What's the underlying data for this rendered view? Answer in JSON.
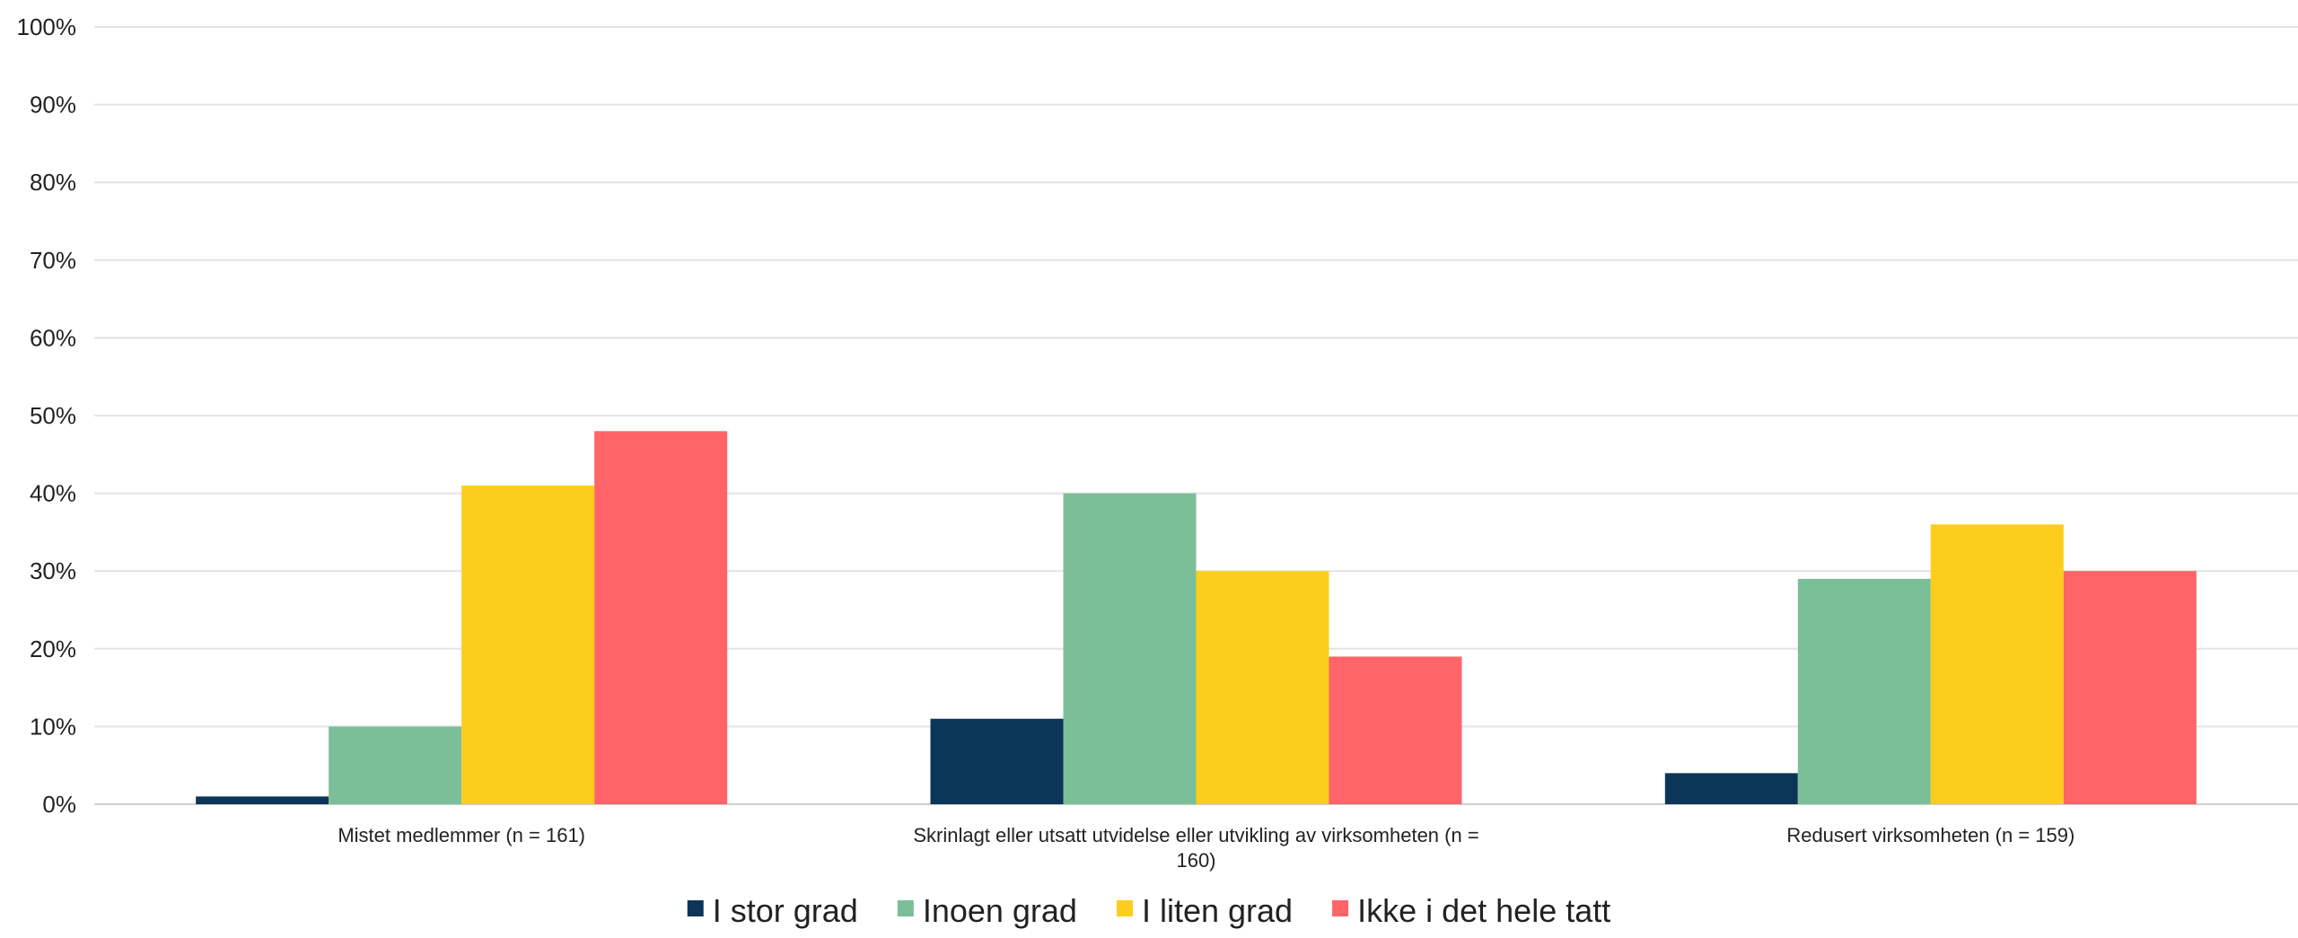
{
  "chart_data": {
    "type": "bar",
    "categories": [
      [
        "Mistet medlemmer (n = 161)"
      ],
      [
        "Skrinlagt eller utsatt utvidelse eller utvikling av virksomheten (n =",
        "160)"
      ],
      [
        "Redusert virksomheten (n = 159)"
      ]
    ],
    "series": [
      {
        "name": "I stor grad",
        "color": "#0c3659",
        "values": [
          1,
          11,
          4
        ]
      },
      {
        "name": "Inoen grad",
        "color": "#7bbf98",
        "values": [
          10,
          40,
          29
        ]
      },
      {
        "name": "I liten grad",
        "color": "#fccd1d",
        "values": [
          41,
          30,
          36
        ]
      },
      {
        "name": "Ikke i det hele tatt",
        "color": "#ff6468",
        "values": [
          48,
          19,
          30
        ]
      }
    ],
    "y_ticks": [
      "0%",
      "10%",
      "20%",
      "30%",
      "40%",
      "50%",
      "60%",
      "70%",
      "80%",
      "90%",
      "100%"
    ],
    "ylim": [
      0,
      100
    ],
    "grid": true,
    "legend_position": "bottom"
  }
}
